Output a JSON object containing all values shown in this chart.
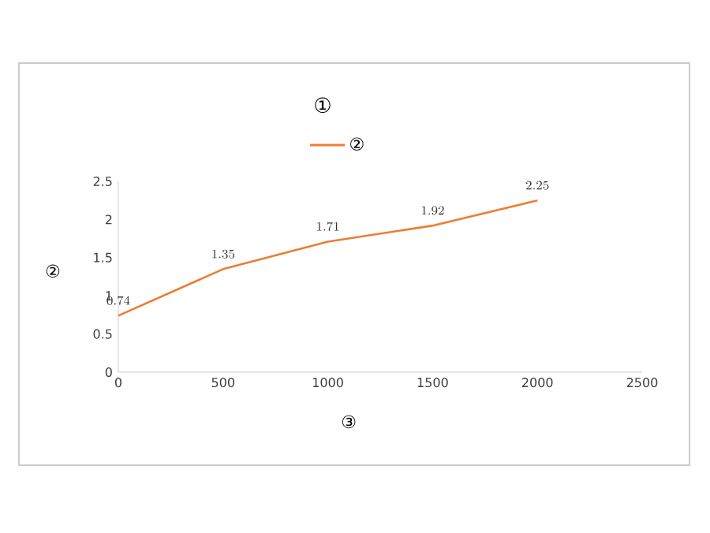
{
  "chart_data": {
    "type": "line",
    "title": "①",
    "xlabel": "③",
    "ylabel": "②",
    "x": [
      0,
      500,
      1000,
      1500,
      2000
    ],
    "series": [
      {
        "name": "②",
        "color": "#ed7d31",
        "values": [
          0.74,
          1.35,
          1.71,
          1.92,
          2.25
        ]
      }
    ],
    "xlim": [
      0,
      2500
    ],
    "xticks": [
      0,
      500,
      1000,
      1500,
      2000,
      2500
    ],
    "ylim": [
      0,
      2.5
    ],
    "yticks": [
      0,
      0.5,
      1,
      1.5,
      2,
      2.5
    ],
    "grid": false,
    "legend": "top",
    "data_labels": true,
    "marker": "none",
    "line_style": "solid"
  }
}
